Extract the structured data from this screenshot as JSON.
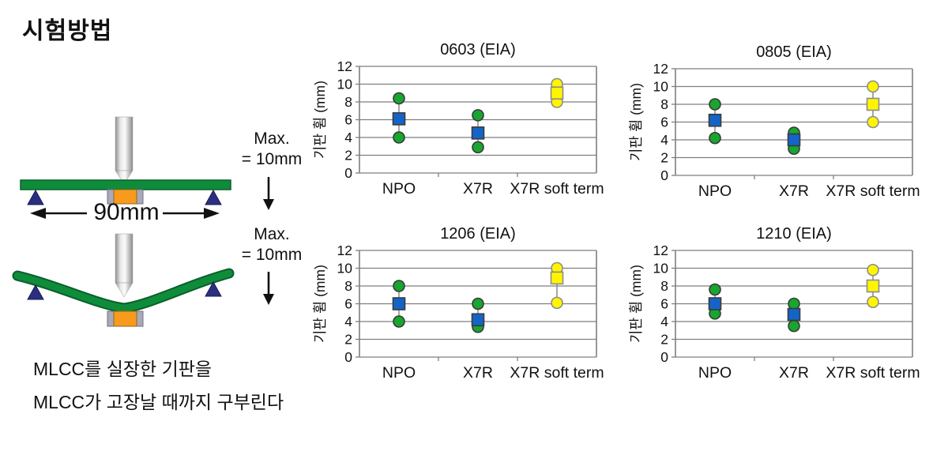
{
  "page_title": "시험방법",
  "diagram": {
    "span_label": "90mm",
    "max_label_line1": "Max.",
    "max_label_line2": "= 10mm",
    "caption_line1": "MLCC를 실장한 기판을",
    "caption_line2": "MLCC가 고장날 때까지 구부린다"
  },
  "palette": {
    "standard_circle": "#17A62E",
    "standard_square": "#1464C8",
    "soft_circle": "#FFF500",
    "soft_square": "#FFF500",
    "standard_outline": "#3A3A3A",
    "soft_outline": "#8C8C8C",
    "grid": "#7F7F7F",
    "connector": "#8F8F9B",
    "board_green": "#0E8C3A",
    "board_green_dark": "#0A5F2A",
    "capacitor_orange": "#F89B1C",
    "capacitor_terminal": "#A9A9BC",
    "support_navy": "#2A2F80",
    "text": "#111111"
  },
  "chart_data": [
    {
      "type": "scatter",
      "title": "0603 (EIA)",
      "ylabel": "기판 휨 (mm)",
      "ylim": [
        0,
        12
      ],
      "yticks": [
        0,
        2,
        4,
        6,
        8,
        10,
        12
      ],
      "grid": true,
      "categories": [
        "NPO",
        "X7R",
        "X7R soft term"
      ],
      "points": [
        {
          "category": "NPO",
          "max": 8.4,
          "mid": 6.1,
          "min": 4.0,
          "style": "standard"
        },
        {
          "category": "X7R",
          "max": 6.5,
          "mid": 4.5,
          "min": 2.9,
          "style": "standard"
        },
        {
          "category": "X7R soft term",
          "max": 10.0,
          "mid": 9.0,
          "min": 8.0,
          "style": "soft"
        }
      ]
    },
    {
      "type": "scatter",
      "title": "0805 (EIA)",
      "ylabel": "기판 휨 (mm)",
      "ylim": [
        0,
        12
      ],
      "yticks": [
        0,
        2,
        4,
        6,
        8,
        10,
        12
      ],
      "grid": true,
      "categories": [
        "NPO",
        "X7R",
        "X7R soft term"
      ],
      "points": [
        {
          "category": "NPO",
          "max": 8.0,
          "mid": 6.2,
          "min": 4.2,
          "style": "standard"
        },
        {
          "category": "X7R",
          "max": 4.8,
          "mid": 4.0,
          "min": 3.0,
          "style": "standard"
        },
        {
          "category": "X7R soft term",
          "max": 10.0,
          "mid": 8.0,
          "min": 6.0,
          "style": "soft"
        }
      ]
    },
    {
      "type": "scatter",
      "title": "1206 (EIA)",
      "ylabel": "기판 휨 (mm)",
      "ylim": [
        0,
        12
      ],
      "yticks": [
        0,
        2,
        4,
        6,
        8,
        10,
        12
      ],
      "grid": true,
      "categories": [
        "NPO",
        "X7R",
        "X7R soft term"
      ],
      "points": [
        {
          "category": "NPO",
          "max": 8.0,
          "mid": 6.0,
          "min": 4.0,
          "style": "standard"
        },
        {
          "category": "X7R",
          "max": 6.0,
          "mid": 4.2,
          "min": 3.4,
          "style": "standard"
        },
        {
          "category": "X7R soft term",
          "max": 10.0,
          "mid": 8.9,
          "min": 6.1,
          "style": "soft"
        }
      ]
    },
    {
      "type": "scatter",
      "title": "1210 (EIA)",
      "ylabel": "기판 휨 (mm)",
      "ylim": [
        0,
        12
      ],
      "yticks": [
        0,
        2,
        4,
        6,
        8,
        10,
        12
      ],
      "grid": true,
      "categories": [
        "NPO",
        "X7R",
        "X7R soft term"
      ],
      "points": [
        {
          "category": "NPO",
          "max": 7.6,
          "mid": 6.0,
          "min": 4.9,
          "style": "standard"
        },
        {
          "category": "X7R",
          "max": 6.0,
          "mid": 4.8,
          "min": 3.5,
          "style": "standard"
        },
        {
          "category": "X7R soft term",
          "max": 9.8,
          "mid": 8.0,
          "min": 6.2,
          "style": "soft"
        }
      ]
    }
  ]
}
